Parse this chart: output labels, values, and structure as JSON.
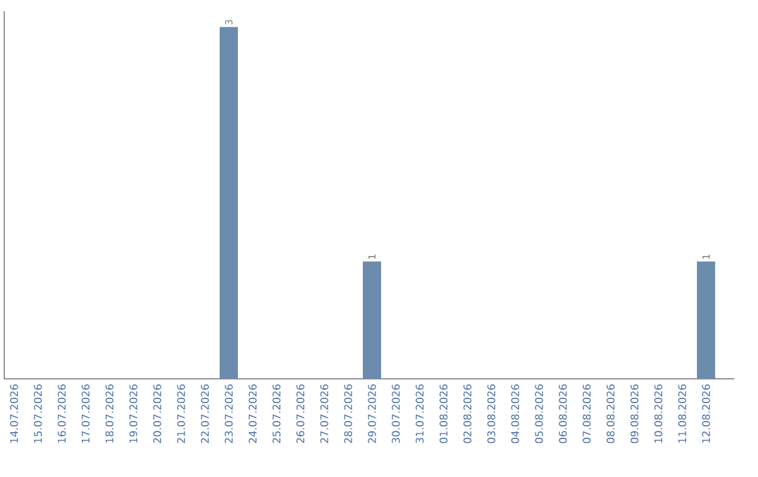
{
  "chart_data": {
    "type": "bar",
    "color": "#6b8cad",
    "categories": [
      "14.07.2026",
      "15.07.2026",
      "16.07.2026",
      "17.07.2026",
      "18.07.2026",
      "19.07.2026",
      "20.07.2026",
      "21.07.2026",
      "22.07.2026",
      "23.07.2026",
      "24.07.2026",
      "25.07.2026",
      "26.07.2026",
      "27.07.2026",
      "28.07.2026",
      "29.07.2026",
      "30.07.2026",
      "31.07.2026",
      "01.08.2026",
      "02.08.2026",
      "03.08.2026",
      "04.08.2026",
      "05.08.2026",
      "06.08.2026",
      "07.08.2026",
      "08.08.2026",
      "09.08.2026",
      "10.08.2026",
      "11.08.2026",
      "12.08.2026"
    ],
    "values": [
      0,
      0,
      0,
      0,
      0,
      0,
      0,
      0,
      0,
      3,
      0,
      0,
      0,
      0,
      0,
      1,
      0,
      0,
      0,
      0,
      0,
      0,
      0,
      0,
      0,
      0,
      0,
      0,
      0,
      1
    ],
    "value_labels": [
      null,
      null,
      null,
      null,
      null,
      null,
      null,
      null,
      null,
      "3",
      null,
      null,
      null,
      null,
      null,
      "1",
      null,
      null,
      null,
      null,
      null,
      null,
      null,
      null,
      null,
      null,
      null,
      null,
      null,
      "1"
    ]
  }
}
